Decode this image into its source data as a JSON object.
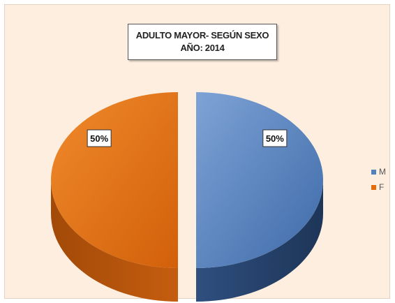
{
  "chart_data": {
    "type": "pie",
    "title": "ADULTO MAYOR- SEGÚN SEXO",
    "subtitle": "AÑO: 2014",
    "categories": [
      "M",
      "F"
    ],
    "values": [
      50,
      50
    ],
    "data_labels": [
      "50%",
      "50%"
    ],
    "colors": [
      "#4f81bd",
      "#e36c09"
    ],
    "legend_position": "right",
    "style": "3d-exploded"
  }
}
